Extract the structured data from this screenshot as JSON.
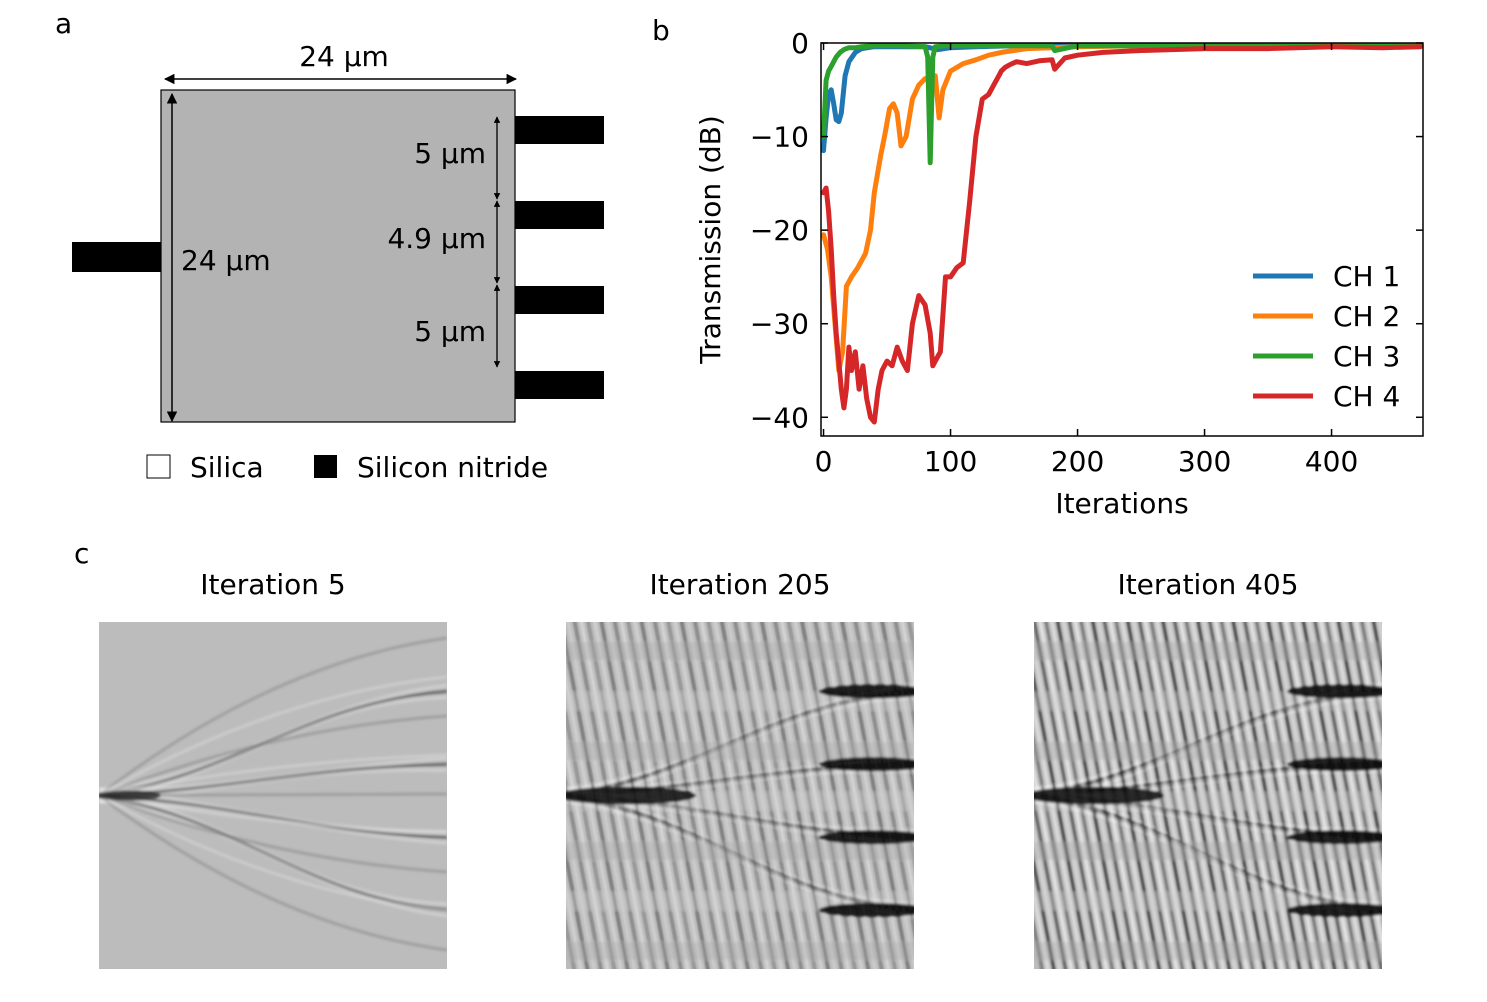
{
  "panels": {
    "a": {
      "label": "a",
      "width_label": "24 µm",
      "height_label": "24 µm",
      "spacing_labels": [
        "5 µm",
        "4.9 µm",
        "5 µm"
      ],
      "legend": [
        {
          "label": "Silica",
          "color": "#ffffff"
        },
        {
          "label": "Silicon nitride",
          "color": "#000000"
        }
      ],
      "colors": {
        "region": "#b3b3b3",
        "waveguide": "#000000"
      }
    },
    "b": {
      "label": "b"
    },
    "c": {
      "label": "c",
      "fields": [
        {
          "title": "Iteration 5",
          "iteration": 5
        },
        {
          "title": "Iteration 205",
          "iteration": 205
        },
        {
          "title": "Iteration 405",
          "iteration": 405
        }
      ]
    }
  },
  "chart_data": {
    "type": "line",
    "xlabel": "Iterations",
    "ylabel": "Transmission (dB)",
    "xlim": [
      -2,
      472
    ],
    "ylim": [
      -42,
      0
    ],
    "xticks": [
      0,
      100,
      200,
      300,
      400
    ],
    "yticks": [
      0,
      -10,
      -20,
      -30,
      -40
    ],
    "ytick_labels": [
      "0",
      "−10",
      "−20",
      "−30",
      "−40"
    ],
    "legend_position": "lower-right",
    "series": [
      {
        "name": "CH 1",
        "color": "#1f77b4",
        "x": [
          0,
          2,
          4,
          6,
          8,
          10,
          12,
          14,
          17,
          20,
          25,
          30,
          40,
          60,
          80,
          90,
          100,
          120,
          150,
          200,
          300,
          400,
          470
        ],
        "y": [
          -11.5,
          -8,
          -5.5,
          -5,
          -6.5,
          -8.2,
          -8.4,
          -7.5,
          -3.5,
          -2,
          -1,
          -0.6,
          -0.4,
          -0.4,
          -0.4,
          -0.7,
          -0.5,
          -0.4,
          -0.3,
          -0.3,
          -0.3,
          -0.3,
          -0.3
        ]
      },
      {
        "name": "CH 2",
        "color": "#ff7f0e",
        "x": [
          0,
          3,
          6,
          9,
          12,
          15,
          18,
          22,
          27,
          33,
          37,
          40,
          45,
          48,
          52,
          55,
          58,
          61,
          65,
          70,
          75,
          80,
          85,
          88,
          91,
          94,
          100,
          110,
          120,
          130,
          140,
          150,
          160,
          180,
          200,
          250,
          300,
          400,
          470
        ],
        "y": [
          -20.5,
          -22,
          -25,
          -30,
          -35,
          -33,
          -26,
          -25,
          -24,
          -22.5,
          -20,
          -16,
          -12,
          -10,
          -7,
          -6.5,
          -7.5,
          -11,
          -10,
          -6,
          -4.5,
          -3.8,
          -4,
          -3.5,
          -8,
          -5,
          -3,
          -2.2,
          -1.8,
          -1.3,
          -1,
          -0.8,
          -0.6,
          -0.5,
          -0.4,
          -0.3,
          -0.3,
          -0.3,
          -0.3
        ]
      },
      {
        "name": "CH 3",
        "color": "#2ca02c",
        "x": [
          0,
          2,
          4,
          6,
          8,
          10,
          13,
          16,
          20,
          25,
          30,
          40,
          60,
          80,
          82,
          84,
          86,
          88,
          95,
          110,
          150,
          180,
          182,
          200,
          300,
          400,
          470
        ],
        "y": [
          -10,
          -4,
          -3,
          -2.5,
          -2,
          -1.5,
          -1,
          -0.7,
          -0.5,
          -0.5,
          -0.4,
          -0.3,
          -0.3,
          -0.4,
          -1.5,
          -12.8,
          -1.5,
          -0.4,
          -0.3,
          -0.3,
          -0.3,
          -0.3,
          -0.8,
          -0.3,
          -0.3,
          -0.3,
          -0.3
        ]
      },
      {
        "name": "CH 4",
        "color": "#d62728",
        "x": [
          0,
          2,
          4,
          6,
          8,
          10,
          12,
          14,
          16,
          18,
          20,
          22,
          25,
          28,
          31,
          34,
          37,
          40,
          43,
          46,
          50,
          54,
          58,
          62,
          66,
          70,
          75,
          80,
          84,
          86,
          88,
          92,
          96,
          100,
          105,
          110,
          115,
          120,
          125,
          130,
          134,
          138,
          140,
          143,
          147,
          152,
          160,
          170,
          180,
          182,
          190,
          200,
          220,
          250,
          300,
          350,
          400,
          440,
          470
        ],
        "y": [
          -16,
          -15.5,
          -18,
          -22,
          -27,
          -31,
          -34,
          -37,
          -39,
          -37,
          -32.5,
          -35,
          -33,
          -37,
          -34.5,
          -38,
          -40,
          -40.5,
          -37,
          -35,
          -34,
          -34.5,
          -32.5,
          -34,
          -35,
          -30,
          -27,
          -28,
          -31,
          -34.5,
          -34,
          -33,
          -25,
          -25,
          -24,
          -23.5,
          -17,
          -10,
          -6,
          -5.5,
          -4.5,
          -3.5,
          -3,
          -2.6,
          -2.3,
          -2,
          -2.2,
          -1.9,
          -1.8,
          -2.8,
          -1.6,
          -1.3,
          -1,
          -0.8,
          -0.6,
          -0.6,
          -0.4,
          -0.5,
          -0.4
        ]
      }
    ]
  }
}
